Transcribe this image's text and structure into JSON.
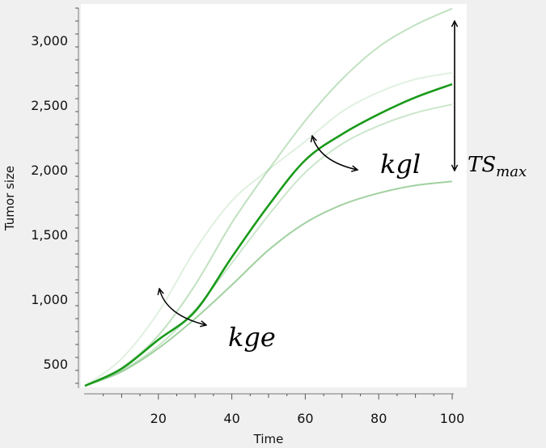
{
  "chart_data": {
    "type": "line",
    "xlabel": "Time",
    "ylabel": "Tumor size",
    "xlim": [
      0,
      100
    ],
    "ylim": [
      300,
      3280
    ],
    "xticks": [
      20,
      40,
      60,
      80,
      100
    ],
    "xtick_labels": [
      "20",
      "40",
      "60",
      "80",
      "100"
    ],
    "yticks": [
      500,
      1000,
      1500,
      2000,
      2500,
      3000
    ],
    "ytick_labels": [
      "500",
      "1,000",
      "1,500",
      "2,000",
      "2,500",
      "3,000"
    ],
    "grid": false,
    "x": [
      0,
      10,
      20,
      30,
      40,
      50,
      60,
      70,
      80,
      90,
      100
    ],
    "series": [
      {
        "values": [
          330,
          470,
          720,
          1110,
          1590,
          2000,
          2380,
          2700,
          2950,
          3120,
          3246
        ],
        "color": "#2e9a2e",
        "opacity": 0.3,
        "emphasis": false
      },
      {
        "values": [
          330,
          540,
          900,
          1380,
          1760,
          2000,
          2220,
          2450,
          2600,
          2700,
          2750
        ],
        "color": "#2e9a2e",
        "opacity": 0.15,
        "emphasis": false
      },
      {
        "values": [
          330,
          450,
          640,
          920,
          1280,
          1650,
          1980,
          2200,
          2340,
          2440,
          2506
        ],
        "color": "#2e9a2e",
        "opacity": 0.25,
        "emphasis": false
      },
      {
        "values": [
          330,
          440,
          620,
          850,
          1110,
          1380,
          1590,
          1730,
          1820,
          1880,
          1910
        ],
        "color": "#2e9a2e",
        "opacity": 0.45,
        "emphasis": false
      },
      {
        "values": [
          330,
          463,
          687,
          906,
          1325,
          1725,
          2075,
          2275,
          2430,
          2560,
          2662
        ],
        "color": "#1a9a1a",
        "opacity": 1,
        "emphasis": true
      }
    ],
    "annotations": {
      "kge": "kge",
      "kgl": "kgl",
      "tsmax_main": "TS",
      "tsmax_sub": "max"
    }
  }
}
